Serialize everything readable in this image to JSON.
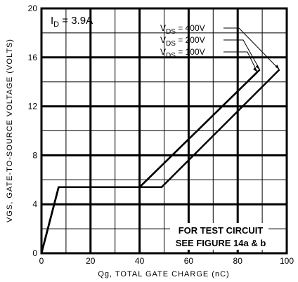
{
  "chart_data": {
    "type": "line",
    "xlabel": "Qg, TOTAL GATE CHARGE (nC)",
    "ylabel": "VGS, GATE-TO-SOURCE VOLTAGE (VOLTS)",
    "xlim": [
      0,
      100
    ],
    "ylim": [
      0,
      20
    ],
    "x_ticks": [
      0,
      20,
      40,
      60,
      80,
      100
    ],
    "y_ticks": [
      0,
      4,
      8,
      12,
      16,
      20
    ],
    "x_minor": [
      10,
      30,
      50,
      70,
      90
    ],
    "y_minor": [
      2,
      6,
      10,
      14,
      18
    ],
    "grid": true,
    "annotation_id": "ID = 3.9A",
    "note_line1": "FOR TEST CIRCUIT",
    "note_line2": "SEE FIGURE 14a & b",
    "series": [
      {
        "name": "VDS = 100V",
        "label": "VDS = 100V",
        "x": [
          0,
          7,
          40,
          88
        ],
        "y": [
          0,
          5.4,
          5.4,
          14.8
        ]
      },
      {
        "name": "VDS = 200V",
        "label": "VDS = 200V",
        "x": [
          0,
          7,
          40,
          89
        ],
        "y": [
          0,
          5.4,
          5.4,
          15.0
        ]
      },
      {
        "name": "VDS = 400V",
        "label": "VDS = 400V",
        "x": [
          0,
          7,
          49,
          97
        ],
        "y": [
          0,
          5.4,
          5.4,
          15.0
        ]
      }
    ]
  }
}
